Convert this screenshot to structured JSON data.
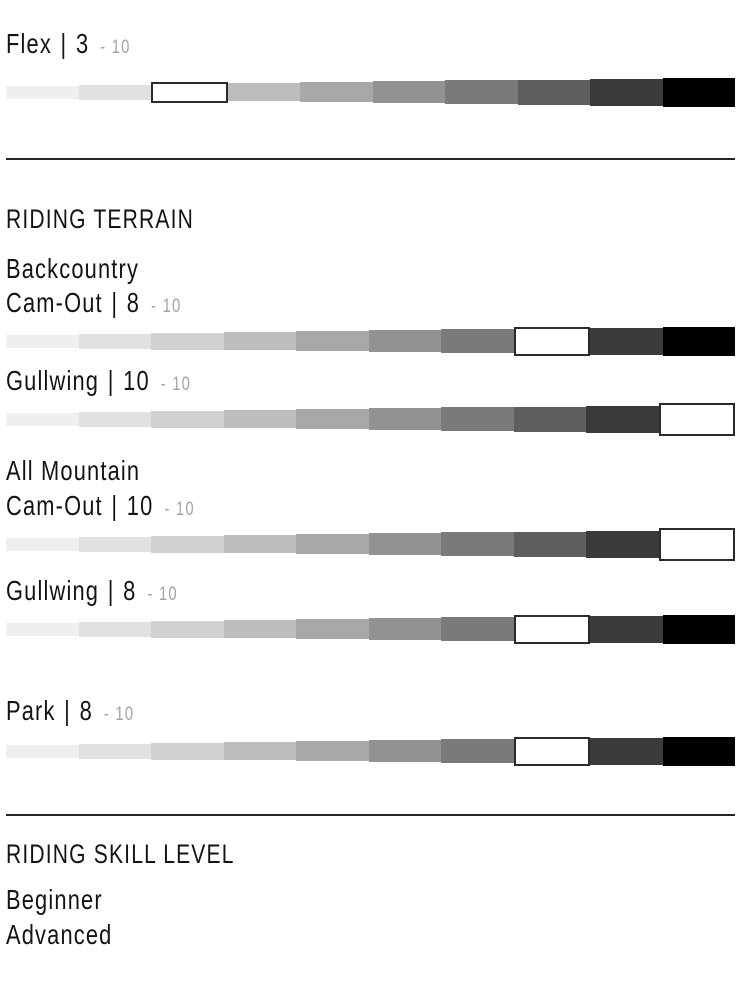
{
  "colors": {
    "background": "#ffffff",
    "text": "#131313",
    "muted": "#a4a4a4",
    "divider": "#262626",
    "highlight_fill": "#ffffff",
    "highlight_border": "#2b2b2b",
    "segments": [
      "#efefef",
      "#e1e1e1",
      "#d1d1d1",
      "#bdbdbd",
      "#a8a8a8",
      "#929292",
      "#7a7a7a",
      "#5e5e5e",
      "#3a3a3a",
      "#000000"
    ]
  },
  "format": {
    "separator": "|",
    "dash": "-"
  },
  "flex_rating": {
    "label": "Flex",
    "value": "3",
    "max": "10"
  },
  "terrain": {
    "heading": "RIDING TERRAIN",
    "groups": [
      {
        "name": "Backcountry",
        "ratings": [
          {
            "label": "Cam-Out",
            "value": "8",
            "max": "10"
          },
          {
            "label": "Gullwing",
            "value": "10",
            "max": "10"
          }
        ]
      },
      {
        "name": "All Mountain",
        "ratings": [
          {
            "label": "Cam-Out",
            "value": "10",
            "max": "10"
          },
          {
            "label": "Gullwing",
            "value": "8",
            "max": "10"
          }
        ]
      }
    ],
    "park": {
      "label": "Park",
      "value": "8",
      "max": "10"
    }
  },
  "skill": {
    "heading": "RIDING SKILL LEVEL",
    "levels": [
      "Beginner",
      "Advanced"
    ]
  },
  "chart_data": {
    "type": "bar",
    "title": "",
    "categories": [
      "Flex",
      "Backcountry Cam-Out",
      "Backcountry Gullwing",
      "All Mountain Cam-Out",
      "All Mountain Gullwing",
      "Park"
    ],
    "values": [
      3,
      8,
      10,
      10,
      8,
      8
    ],
    "scale_min": 1,
    "scale_max": 10,
    "segments_per_bar": 10,
    "bar_style": "10-step grayscale wedge, light-to-black, selected step shown as white box with dark outline"
  }
}
